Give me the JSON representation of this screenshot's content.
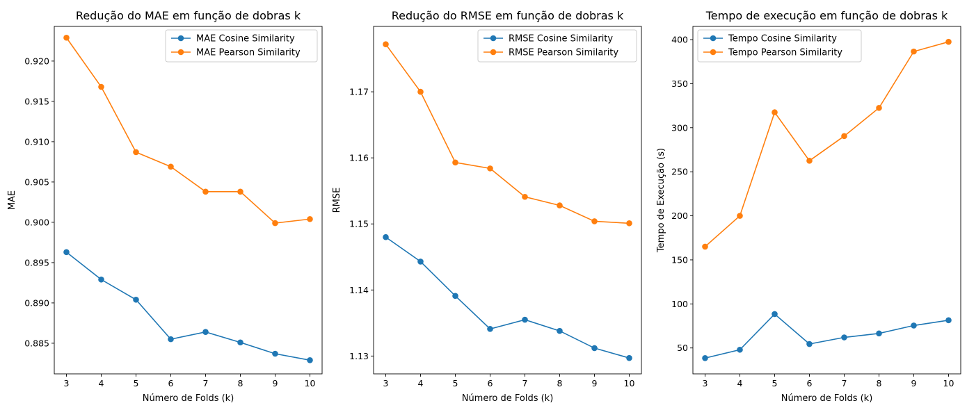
{
  "chart_data": [
    {
      "type": "line",
      "title": "Redução do MAE em função de dobras k",
      "xlabel": "Número de Folds (k)",
      "ylabel": "MAE",
      "x": [
        3,
        4,
        5,
        6,
        7,
        8,
        9,
        10
      ],
      "xlim": [
        2.65,
        10.35
      ],
      "ylim": [
        0.8812,
        0.9243
      ],
      "yticks": [
        "0.885",
        "0.890",
        "0.895",
        "0.900",
        "0.905",
        "0.910",
        "0.915",
        "0.920"
      ],
      "legend_position": "top-right",
      "grid": false,
      "series": [
        {
          "name": "MAE Cosine Similarity",
          "color": "#1f77b4",
          "values": [
            0.8963,
            0.8929,
            0.8904,
            0.8855,
            0.8864,
            0.8851,
            0.8837,
            0.8829
          ]
        },
        {
          "name": "MAE Pearson Similarity",
          "color": "#ff7f0e",
          "values": [
            0.9229,
            0.9168,
            0.9087,
            0.9069,
            0.9038,
            0.9038,
            0.8999,
            0.9004
          ]
        }
      ]
    },
    {
      "type": "line",
      "title": "Redução do RMSE em função de dobras k",
      "xlabel": "Número de Folds (k)",
      "ylabel": "RMSE",
      "x": [
        3,
        4,
        5,
        6,
        7,
        8,
        9,
        10
      ],
      "xlim": [
        2.65,
        10.35
      ],
      "ylim": [
        1.1273,
        1.1799
      ],
      "yticks": [
        "1.13",
        "1.14",
        "1.15",
        "1.16",
        "1.17"
      ],
      "legend_position": "top-right",
      "grid": false,
      "series": [
        {
          "name": "RMSE Cosine Similarity",
          "color": "#1f77b4",
          "values": [
            1.148,
            1.1443,
            1.1391,
            1.1341,
            1.1355,
            1.1338,
            1.1312,
            1.1297
          ]
        },
        {
          "name": "RMSE Pearson Similarity",
          "color": "#ff7f0e",
          "values": [
            1.1772,
            1.17,
            1.1593,
            1.1584,
            1.1541,
            1.1528,
            1.1504,
            1.1501
          ]
        }
      ]
    },
    {
      "type": "line",
      "title": "Tempo de execução em função de dobras k",
      "xlabel": "Número de Folds (k)",
      "ylabel": "Tempo de Execução (s)",
      "x": [
        3,
        4,
        5,
        6,
        7,
        8,
        9,
        10
      ],
      "xlim": [
        2.65,
        10.35
      ],
      "ylim": [
        20.6,
        415
      ],
      "yticks": [
        "50",
        "100",
        "150",
        "200",
        "250",
        "300",
        "350",
        "400"
      ],
      "legend_position": "top-left",
      "grid": false,
      "series": [
        {
          "name": "Tempo Cosine Similarity",
          "color": "#1f77b4",
          "values": [
            38.5,
            48,
            88.5,
            54.5,
            62,
            66.5,
            75.5,
            81.5
          ]
        },
        {
          "name": "Tempo Pearson Similarity",
          "color": "#ff7f0e",
          "values": [
            165,
            200,
            317.5,
            262.5,
            290.5,
            322.5,
            386.5,
            397.5
          ]
        }
      ]
    }
  ]
}
